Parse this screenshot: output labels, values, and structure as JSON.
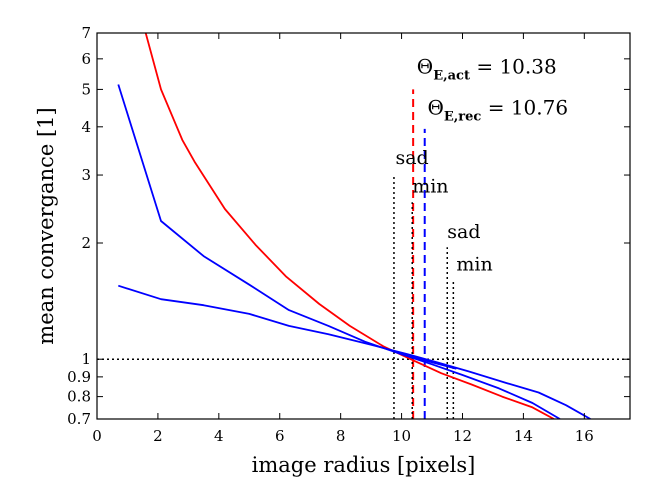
{
  "chart_data": {
    "type": "line",
    "title": "",
    "xlabel": "image radius [pixels]",
    "ylabel": "mean convergance [1]",
    "yscale": "log",
    "xlim": [
      0,
      17.5
    ],
    "ylim": [
      0.7,
      7
    ],
    "xticks": [
      0,
      2,
      4,
      6,
      8,
      10,
      12,
      14,
      16
    ],
    "xtick_labels": [
      "0",
      "2",
      "4",
      "6",
      "8",
      "10",
      "12",
      "14",
      "16"
    ],
    "yticks": [
      0.7,
      0.8,
      0.9,
      1,
      2,
      3,
      4,
      5,
      6,
      7
    ],
    "ytick_labels": [
      "0.7",
      "0.8",
      "0.9",
      "1",
      "2",
      "3",
      "4",
      "5",
      "6",
      "7"
    ],
    "grid": false,
    "series": [
      {
        "name": "actual",
        "color": "#ff0000",
        "x": [
          1.6,
          2.1,
          2.8,
          3.2,
          4.2,
          5.2,
          6.2,
          7.3,
          8.3,
          9.4,
          10.3,
          11.3,
          12.3,
          13.3,
          14.3,
          15.0
        ],
        "y": [
          7.0,
          5.0,
          3.7,
          3.25,
          2.45,
          1.98,
          1.64,
          1.39,
          1.22,
          1.08,
          1.0,
          0.92,
          0.86,
          0.8,
          0.75,
          0.7
        ]
      },
      {
        "name": "reconstructed-inner",
        "color": "#0000ff",
        "x": [
          0.7,
          2.1,
          3.5,
          5.0,
          6.3,
          7.6,
          8.8,
          10.0,
          11.0,
          12.0,
          13.2,
          14.3,
          15.2
        ],
        "y": [
          5.15,
          2.28,
          1.85,
          1.56,
          1.34,
          1.22,
          1.11,
          1.03,
          0.97,
          0.91,
          0.84,
          0.77,
          0.7
        ]
      },
      {
        "name": "reconstructed-outer",
        "color": "#0000ff",
        "x": [
          0.7,
          2.1,
          3.5,
          5.0,
          6.3,
          7.6,
          9.0,
          10.2,
          11.2,
          12.2,
          13.4,
          14.5,
          15.4,
          16.2
        ],
        "y": [
          1.55,
          1.43,
          1.38,
          1.31,
          1.22,
          1.16,
          1.09,
          1.03,
          0.98,
          0.93,
          0.87,
          0.82,
          0.76,
          0.7
        ]
      },
      {
        "name": "reconstructed-segment",
        "color": "#0000ff",
        "x": [
          10.0,
          11.8
        ],
        "y": [
          1.03,
          0.945
        ]
      }
    ],
    "reference_lines": [
      {
        "name": "unit-convergence",
        "orientation": "horizontal",
        "y": 1,
        "style": "dotted",
        "color": "#000000"
      },
      {
        "name": "theta-e-act-line",
        "orientation": "vertical",
        "x": 10.38,
        "y_from": 0.7,
        "y_to": 5.0,
        "style": "dashed",
        "color": "#ff0000"
      },
      {
        "name": "theta-e-rec-line",
        "orientation": "vertical",
        "x": 10.76,
        "y_from": 0.7,
        "y_to": 3.95,
        "style": "dashed",
        "color": "#0000ff"
      },
      {
        "name": "saddle-1-line",
        "orientation": "vertical",
        "x": 9.75,
        "y_from": 0.7,
        "y_to": 3.0,
        "style": "dotted",
        "color": "#000000"
      },
      {
        "name": "min-1-line",
        "orientation": "vertical",
        "x": 10.35,
        "y_from": 0.7,
        "y_to": 2.55,
        "style": "dotted",
        "color": "#000000"
      },
      {
        "name": "saddle-2-line",
        "orientation": "vertical",
        "x": 11.5,
        "y_from": 0.7,
        "y_to": 1.95,
        "style": "dotted",
        "color": "#000000"
      },
      {
        "name": "min-2-line",
        "orientation": "vertical",
        "x": 11.7,
        "y_from": 0.7,
        "y_to": 1.6,
        "style": "dotted",
        "color": "#000000"
      }
    ],
    "annotations": [
      {
        "name": "theta-e-act",
        "symbol": "Θ",
        "subscript": "E,act",
        "value_text": "= 10.38",
        "x": 10.5,
        "y": 5.5
      },
      {
        "name": "theta-e-rec",
        "symbol": "Θ",
        "subscript": "E,rec",
        "value_text": "= 10.76",
        "x": 10.85,
        "y": 4.3
      },
      {
        "name": "saddle-1",
        "text": "sad",
        "x": 9.8,
        "y": 3.2
      },
      {
        "name": "min-1",
        "text": "min",
        "x": 10.35,
        "y": 2.7
      },
      {
        "name": "saddle-2",
        "text": "sad",
        "x": 11.5,
        "y": 2.06
      },
      {
        "name": "min-2",
        "text": "min",
        "x": 11.8,
        "y": 1.7
      }
    ]
  }
}
